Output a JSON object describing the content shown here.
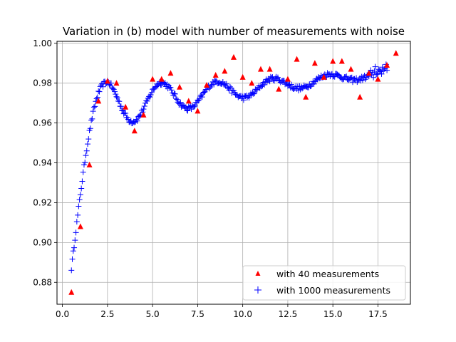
{
  "chart_data": {
    "type": "scatter",
    "title": "Variation in (b) model with number of measurements with noise",
    "xlabel": "",
    "ylabel": "",
    "xlim": [
      -0.3,
      19.3
    ],
    "ylim": [
      0.869,
      1.001
    ],
    "grid": true,
    "legend_position": "bottom-right",
    "x_ticks": [
      0.0,
      2.5,
      5.0,
      7.5,
      10.0,
      12.5,
      15.0,
      17.5
    ],
    "x_tick_labels": [
      "0.0",
      "2.5",
      "5.0",
      "7.5",
      "10.0",
      "12.5",
      "15.0",
      "17.5"
    ],
    "y_ticks": [
      0.88,
      0.9,
      0.92,
      0.94,
      0.96,
      0.98,
      1.0
    ],
    "y_tick_labels": [
      "0.88",
      "0.90",
      "0.92",
      "0.94",
      "0.96",
      "0.98",
      "1.00"
    ],
    "series": [
      {
        "name": "with 40 measurements",
        "marker": "triangle",
        "color": "#ff0000",
        "x": [
          0.5,
          1.0,
          1.5,
          2.0,
          2.5,
          3.0,
          3.5,
          4.0,
          4.5,
          5.0,
          5.5,
          6.0,
          6.5,
          7.0,
          7.5,
          8.0,
          8.5,
          9.0,
          9.5,
          10.0,
          10.5,
          11.0,
          11.5,
          12.0,
          12.5,
          13.0,
          13.5,
          14.0,
          14.5,
          15.0,
          15.5,
          16.0,
          16.5,
          17.0,
          17.5,
          18.0,
          18.5
        ],
        "y": [
          0.875,
          0.908,
          0.939,
          0.971,
          0.981,
          0.98,
          0.968,
          0.956,
          0.964,
          0.982,
          0.982,
          0.985,
          0.978,
          0.971,
          0.966,
          0.979,
          0.984,
          0.986,
          0.993,
          0.983,
          0.98,
          0.987,
          0.987,
          0.977,
          0.982,
          0.992,
          0.973,
          0.99,
          0.983,
          0.991,
          0.991,
          0.987,
          0.973,
          0.985,
          0.982,
          0.989,
          0.995
        ]
      },
      {
        "name": "with 1000 measurements",
        "marker": "plus",
        "color": "#0000ff",
        "x_start": 0.5,
        "x_end": 18.0,
        "x_step": 0.05,
        "noise_amplitude": 0.0012,
        "model": "damped oscillation rising from 0.887 toward ~0.985"
      }
    ]
  }
}
